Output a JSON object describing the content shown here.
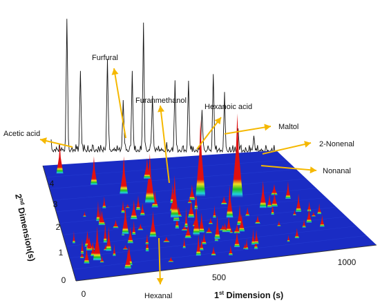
{
  "chart_data": {
    "type": "surface",
    "x_axis": {
      "title_main": "1",
      "title_sup": "st",
      "title_rest": " Dimension (s)",
      "ticks": [
        "0",
        "500",
        "1000"
      ],
      "range": [
        0,
        1250
      ]
    },
    "y_axis": {
      "title_main": "2",
      "title_sup": "nd",
      "title_rest": " Dimension(s)",
      "ticks": [
        "0",
        "1",
        "2",
        "3",
        "4"
      ],
      "range": [
        0,
        4.8
      ]
    },
    "compounds": [
      {
        "name": "Acetic acid"
      },
      {
        "name": "Furfural"
      },
      {
        "name": "Furanmethanol"
      },
      {
        "name": "Hexanoic acid"
      },
      {
        "name": "Maltol"
      },
      {
        "name": "2-Nonenal"
      },
      {
        "name": "Nonanal"
      },
      {
        "name": "Hexanal"
      }
    ],
    "colors": {
      "surface": "#1a2cc4",
      "peak": "#e01010",
      "arrow": "#f5b800"
    }
  }
}
